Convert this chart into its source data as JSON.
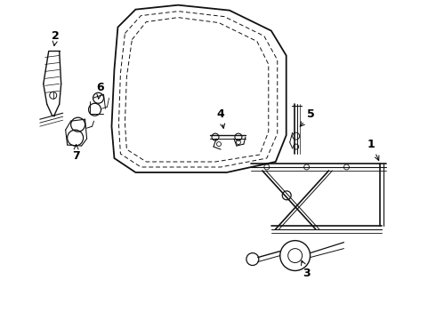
{
  "background_color": "#ffffff",
  "line_color": "#111111",
  "figsize": [
    4.9,
    3.6
  ],
  "dpi": 100,
  "door_outer": {
    "x": [
      1.35,
      1.55,
      2.05,
      2.6,
      3.05,
      3.2,
      3.2,
      3.08,
      2.5,
      1.55,
      1.32,
      1.28,
      1.3,
      1.35
    ],
    "y": [
      3.32,
      3.5,
      3.55,
      3.5,
      3.28,
      3.0,
      2.1,
      1.8,
      1.68,
      1.68,
      1.85,
      2.2,
      2.8,
      3.32
    ]
  },
  "door_inner1": {
    "x": [
      1.44,
      1.62,
      2.05,
      2.55,
      2.95,
      3.08,
      3.08,
      2.95,
      2.45,
      1.62,
      1.4,
      1.37,
      1.4,
      1.44
    ],
    "y": [
      3.25,
      3.42,
      3.47,
      3.42,
      3.2,
      2.95,
      2.12,
      1.88,
      1.76,
      1.76,
      1.92,
      2.22,
      2.75,
      3.25
    ]
  },
  "door_inner2": {
    "x": [
      1.5,
      1.68,
      2.05,
      2.5,
      2.88,
      2.98,
      2.98,
      2.88,
      2.4,
      1.68,
      1.46,
      1.43,
      1.46,
      1.5
    ],
    "y": [
      3.18,
      3.35,
      3.4,
      3.35,
      3.14,
      2.9,
      2.15,
      1.94,
      1.82,
      1.82,
      1.98,
      2.25,
      2.7,
      3.18
    ]
  }
}
